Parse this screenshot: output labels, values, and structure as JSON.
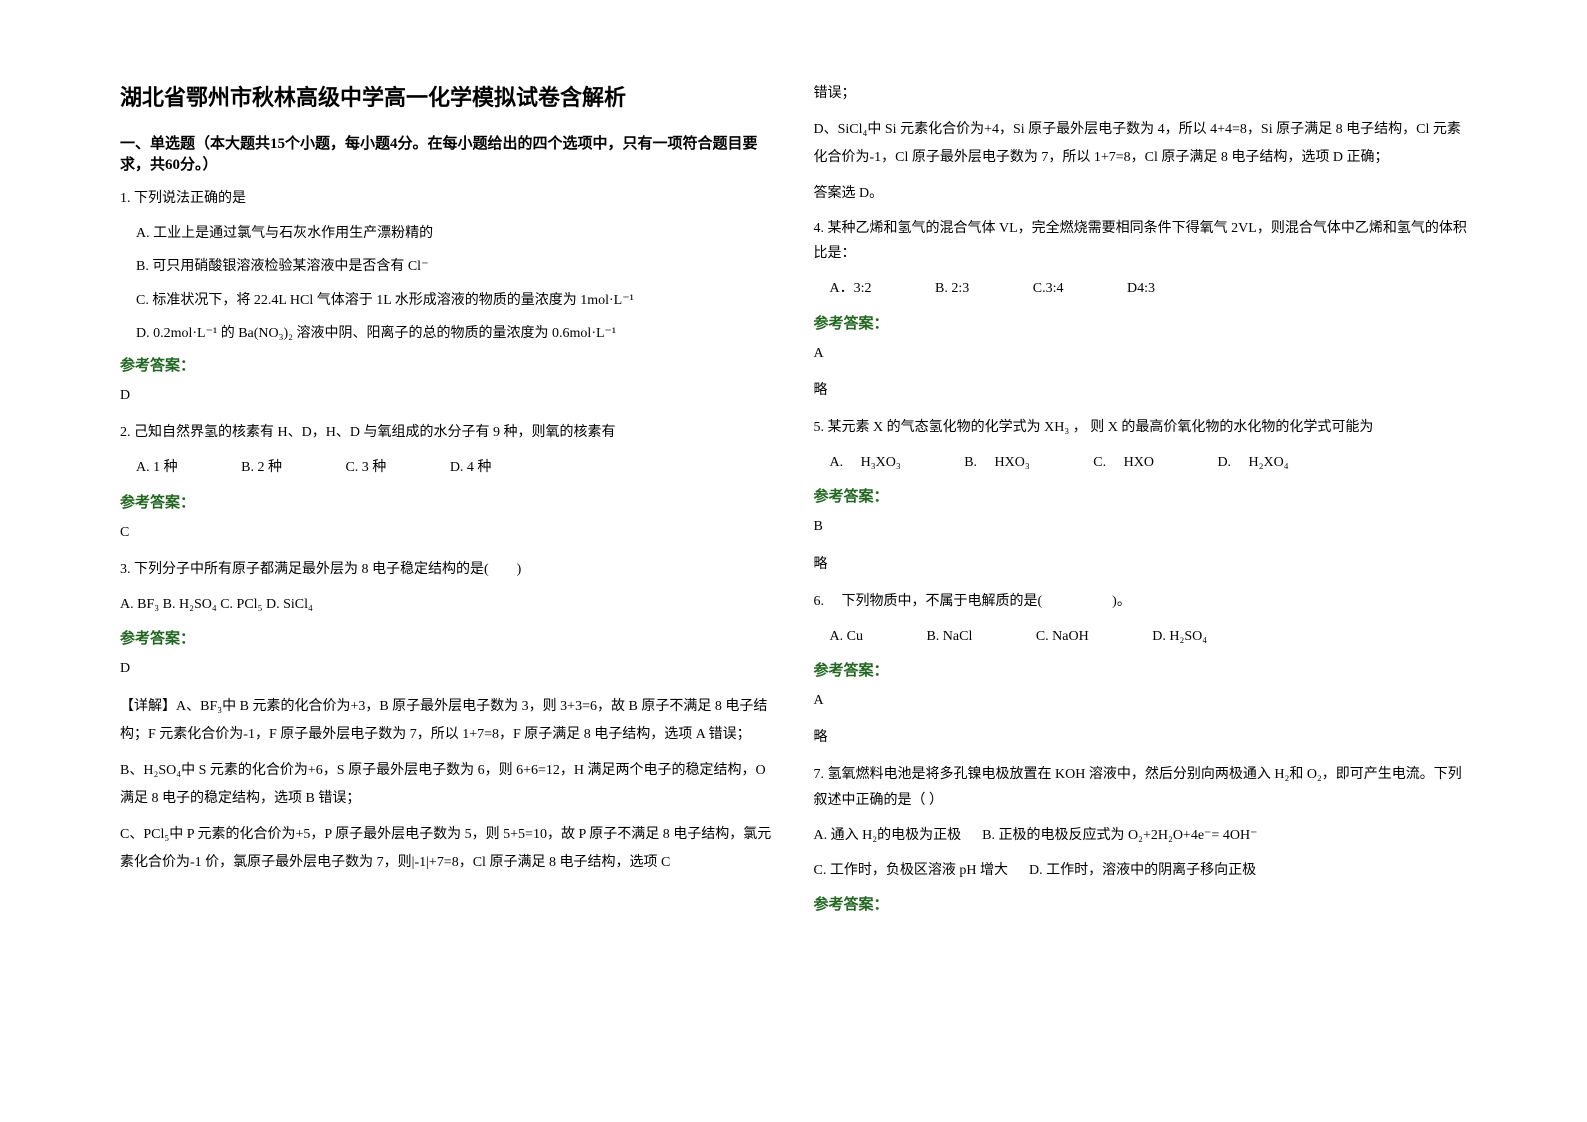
{
  "title": "湖北省鄂州市秋林高级中学高一化学模拟试卷含解析",
  "section1_heading": "一、单选题（本大题共15个小题，每小题4分。在每小题给出的四个选项中，只有一项符合题目要求，共60分。）",
  "q1": {
    "text": "1. 下列说法正确的是",
    "optA": "A. 工业上是通过氯气与石灰水作用生产漂粉精的",
    "optB": "B. 可只用硝酸银溶液检验某溶液中是否含有 Cl⁻",
    "optC": "C. 标准状况下，将 22.4L HCl 气体溶于 1L 水形成溶液的物质的量浓度为 1mol·L⁻¹",
    "optD": "D. 0.2mol·L⁻¹ 的 Ba(NO₃)₂ 溶液中阴、阳离子的总的物质的量浓度为 0.6mol·L⁻¹"
  },
  "answer_label": "参考答案：",
  "q1_answer": "D",
  "q2": {
    "text": "2. 己知自然界氢的核素有 H、D，H、D 与氧组成的水分子有 9 种，则氧的核素有",
    "optA": "A. 1 种",
    "optB": "B.  2 种",
    "optC": "C. 3 种",
    "optD": "D. 4 种"
  },
  "q2_answer": "C",
  "q3": {
    "text": "3. 下列分子中所有原子都满足最外层为 8 电子稳定结构的是(　　)",
    "opts": "A. BF₃  B. H₂SO₄       C. PCl₅ D. SiCl₄"
  },
  "q3_answer": "D",
  "q3_explain1": "【详解】A、BF₃中 B 元素的化合价为+3，B 原子最外层电子数为 3，则 3+3=6，故 B 原子不满足 8 电子结构；F 元素化合价为-1，F 原子最外层电子数为 7，所以 1+7=8，F 原子满足 8 电子结构，选项 A 错误；",
  "q3_explain2": "B、H₂SO₄中 S 元素的化合价为+6，S 原子最外层电子数为 6，则 6+6=12，H 满足两个电子的稳定结构，O 满足 8 电子的稳定结构，选项 B 错误；",
  "q3_explain3": "C、PCl₅中 P 元素的化合价为+5，P 原子最外层电子数为 5，则 5+5=10，故 P 原子不满足 8 电子结构，氯元素化合价为-1 价，氯原子最外层电子数为 7，则|-1|+7=8，Cl 原子满足 8 电子结构，选项 C",
  "q3_explain4": "错误；",
  "q3_explain5": "D、SiCl₄中 Si 元素化合价为+4，Si 原子最外层电子数为 4，所以 4+4=8，Si 原子满足 8 电子结构，Cl 元素化合价为-1，Cl 原子最外层电子数为 7，所以 1+7=8，Cl 原子满足 8 电子结构，选项 D 正确；",
  "q3_explain6": "答案选 D。",
  "q4": {
    "text": "4. 某种乙烯和氢气的混合气体 VL，完全燃烧需要相同条件下得氧气 2VL，则混合气体中乙烯和氢气的体积比是：",
    "optA": "A．3:2",
    "optB": "B. 2:3",
    "optC": "C.3:4",
    "optD": "D4:3"
  },
  "q4_answer": "A",
  "q4_note": "略",
  "q5": {
    "text": "5. 某元素 X 的气态氢化物的化学式为 XH₃ ， 则 X 的最高价氧化物的水化物的化学式可能为",
    "optA": "A.　 H₃XO₃",
    "optB": "B.　 HXO₃",
    "optC": "C.　 HXO",
    "optD": "D.　 H₂XO₄"
  },
  "q5_answer": "B",
  "q5_note": "略",
  "q6": {
    "text": "6. 　下列物质中，不属于电解质的是(　　　　　)。",
    "optA": "A. Cu",
    "optB": "B. NaCl",
    "optC": "C. NaOH",
    "optD": "D. H₂SO₄"
  },
  "q6_answer": "A",
  "q6_note": "略",
  "q7": {
    "text": "7. 氢氧燃料电池是将多孔镍电极放置在 KOH 溶液中，然后分别向两极通入 H₂和 O₂，即可产生电流。下列叙述中正确的是（   ）",
    "optA": "A. 通入 H₂的电极为正极",
    "optB": "B. 正极的电极反应式为 O₂+2H₂O+4e⁻= 4OH⁻",
    "optC": "C. 工作时，负极区溶液 pH 增大",
    "optD": "D. 工作时，溶液中的阴离子移向正极"
  }
}
